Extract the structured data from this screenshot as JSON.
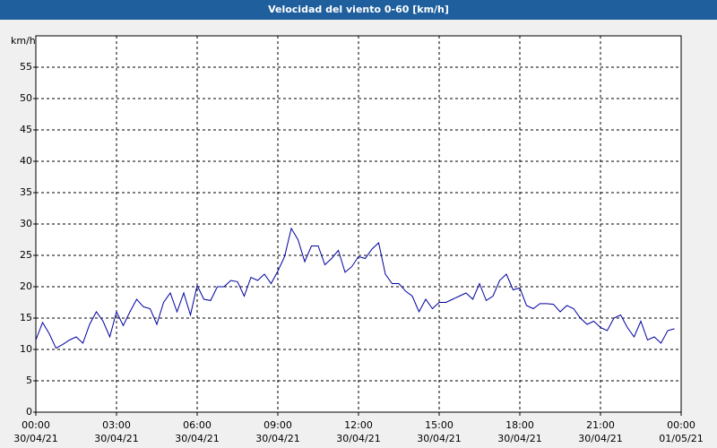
{
  "chart_data": {
    "type": "line",
    "title": "Velocidad del viento 0-60 [km/h]",
    "y_label": "km/h",
    "x": [
      0,
      0.25,
      0.5,
      0.75,
      1,
      1.25,
      1.5,
      1.75,
      2,
      2.25,
      2.5,
      2.75,
      3,
      3.25,
      3.5,
      3.75,
      4,
      4.25,
      4.5,
      4.75,
      5,
      5.25,
      5.5,
      5.75,
      6,
      6.25,
      6.5,
      6.75,
      7,
      7.25,
      7.5,
      7.75,
      8,
      8.25,
      8.5,
      8.75,
      9,
      9.25,
      9.5,
      9.75,
      10,
      10.25,
      10.5,
      10.75,
      11,
      11.25,
      11.5,
      11.75,
      12,
      12.25,
      12.5,
      12.75,
      13,
      13.25,
      13.5,
      13.75,
      14,
      14.25,
      14.5,
      14.75,
      15,
      15.25,
      15.5,
      15.75,
      16,
      16.25,
      16.5,
      16.75,
      17,
      17.25,
      17.5,
      17.75,
      18,
      18.25,
      18.5,
      18.75,
      19,
      19.25,
      19.5,
      19.75,
      20,
      20.25,
      20.5,
      20.75,
      21,
      21.25,
      21.5,
      21.75,
      22,
      22.25,
      22.5,
      22.75,
      23,
      23.25,
      23.5,
      23.75
    ],
    "series": [
      {
        "name": "Velocidad del viento",
        "color": "#0000a0",
        "values": [
          11.5,
          14.3,
          12.5,
          10.2,
          10.8,
          11.5,
          12,
          11,
          14,
          16,
          14.5,
          12,
          16,
          13.8,
          16,
          18,
          16.8,
          16.5,
          14,
          17.5,
          19,
          16,
          19,
          15.5,
          20.2,
          18,
          17.8,
          20,
          20,
          21,
          20.8,
          18.5,
          21.5,
          21,
          22,
          20.5,
          22.5,
          24.8,
          29.3,
          27.5,
          24,
          26.5,
          26.5,
          23.5,
          24.5,
          25.8,
          22.3,
          23.2,
          24.8,
          24.5,
          26,
          27,
          22,
          20.5,
          20.5,
          19.3,
          18.5,
          16,
          18,
          16.5,
          17.5,
          17.5,
          18,
          18.5,
          19,
          18,
          20.5,
          17.8,
          18.5,
          21,
          22,
          19.5,
          19.8,
          17,
          16.5,
          17.3,
          17.3,
          17.2,
          16,
          17,
          16.5,
          15,
          14,
          14.5,
          13.5,
          13,
          15,
          15.5,
          13.5,
          12,
          14.5,
          11.5,
          12,
          11,
          13,
          13.3
        ]
      }
    ],
    "xlim": [
      0,
      24
    ],
    "xticks": [
      {
        "value": 0,
        "label": [
          "00:00",
          "30/04/21"
        ]
      },
      {
        "value": 3,
        "label": [
          "03:00",
          "30/04/21"
        ]
      },
      {
        "value": 6,
        "label": [
          "06:00",
          "30/04/21"
        ]
      },
      {
        "value": 9,
        "label": [
          "09:00",
          "30/04/21"
        ]
      },
      {
        "value": 12,
        "label": [
          "12:00",
          "30/04/21"
        ]
      },
      {
        "value": 15,
        "label": [
          "15:00",
          "30/04/21"
        ]
      },
      {
        "value": 18,
        "label": [
          "18:00",
          "30/04/21"
        ]
      },
      {
        "value": 21,
        "label": [
          "21:00",
          "30/04/21"
        ]
      },
      {
        "value": 24,
        "label": [
          "00:00",
          "01/05/21"
        ]
      }
    ],
    "ylim": [
      0,
      60
    ],
    "yticks": [
      0,
      5,
      10,
      15,
      20,
      25,
      30,
      35,
      40,
      45,
      50,
      55
    ],
    "grid": true
  }
}
